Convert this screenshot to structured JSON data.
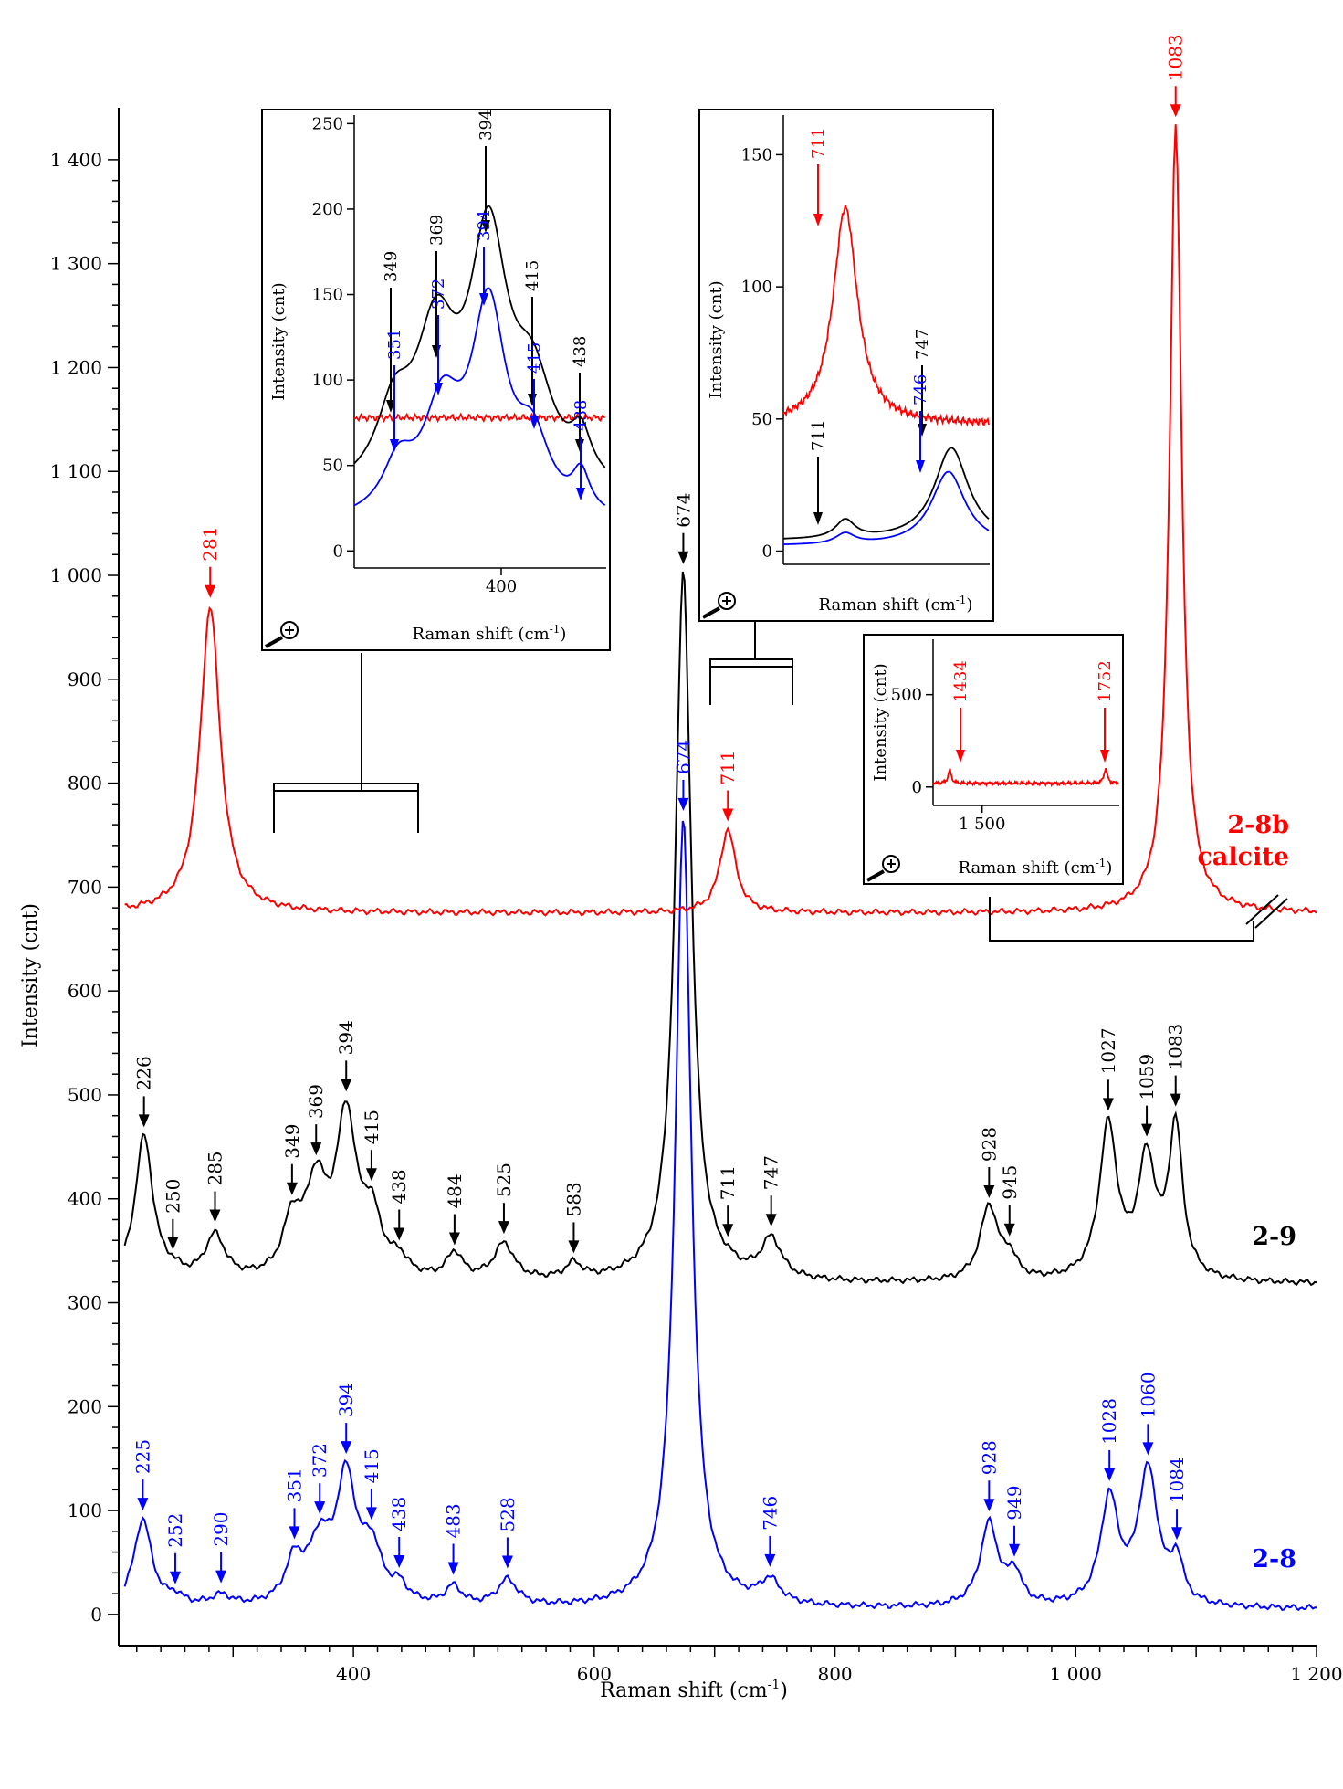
{
  "chart_data": {
    "type": "line",
    "xlabel": "Raman shift (cm",
    "xlabel_sup": "-1",
    "xlabel_end": ")",
    "ylabel": "Intensity (cnt)",
    "xlim": [
      205,
      1200
    ],
    "ylim": [
      -30,
      1450
    ],
    "x_ticks": [
      400,
      600,
      800,
      1000,
      1200
    ],
    "x_tick_labels": [
      "400",
      "600",
      "800",
      "1 000",
      "1 200"
    ],
    "y_ticks": [
      0,
      100,
      200,
      300,
      400,
      500,
      600,
      700,
      800,
      900,
      1000,
      1100,
      1200,
      1300,
      1400
    ],
    "y_tick_labels": [
      "0",
      "100",
      "200",
      "300",
      "400",
      "500",
      "600",
      "700",
      "800",
      "900",
      "1 000",
      "1 100",
      "1 200",
      "1 300",
      "1 400"
    ],
    "series": [
      {
        "name": "2-8",
        "color": "#0000ff",
        "baseline": 5,
        "peaks": [
          [
            225,
            85,
            9
          ],
          [
            252,
            8,
            8
          ],
          [
            290,
            10,
            10
          ],
          [
            351,
            40,
            9
          ],
          [
            372,
            55,
            11
          ],
          [
            394,
            118,
            10
          ],
          [
            415,
            50,
            10
          ],
          [
            438,
            15,
            8
          ],
          [
            483,
            18,
            8
          ],
          [
            528,
            25,
            10
          ],
          [
            674,
            760,
            8
          ],
          [
            746,
            22,
            10
          ],
          [
            928,
            80,
            9
          ],
          [
            949,
            30,
            7
          ],
          [
            1028,
            102,
            9
          ],
          [
            1060,
            130,
            10
          ],
          [
            1084,
            40,
            6
          ]
        ],
        "labels": [
          [
            "225",
            225
          ],
          [
            "252",
            252
          ],
          [
            "290",
            290
          ],
          [
            "351",
            351
          ],
          [
            "372",
            372
          ],
          [
            "394",
            394
          ],
          [
            "415",
            415
          ],
          [
            "438",
            438
          ],
          [
            "483",
            483
          ],
          [
            "528",
            528
          ],
          [
            "674",
            674
          ],
          [
            "746",
            746
          ],
          [
            "928",
            928
          ],
          [
            "949",
            949
          ],
          [
            "1028",
            1028
          ],
          [
            "1060",
            1060
          ],
          [
            "1084",
            1084
          ]
        ]
      },
      {
        "name": "2-9",
        "color": "#000000",
        "baseline": 318,
        "peaks": [
          [
            226,
            140,
            9
          ],
          [
            250,
            5,
            8
          ],
          [
            285,
            42,
            10
          ],
          [
            349,
            50,
            9
          ],
          [
            369,
            85,
            11
          ],
          [
            394,
            150,
            10
          ],
          [
            415,
            55,
            10
          ],
          [
            438,
            15,
            8
          ],
          [
            484,
            25,
            8
          ],
          [
            525,
            35,
            10
          ],
          [
            583,
            15,
            8
          ],
          [
            674,
            685,
            8
          ],
          [
            711,
            3,
            8
          ],
          [
            747,
            38,
            10
          ],
          [
            928,
            72,
            9
          ],
          [
            945,
            20,
            7
          ],
          [
            1027,
            148,
            9
          ],
          [
            1059,
            112,
            9
          ],
          [
            1083,
            145,
            7
          ]
        ],
        "labels": [
          [
            "226",
            226
          ],
          [
            "250",
            250
          ],
          [
            "285",
            285
          ],
          [
            "349",
            349
          ],
          [
            "369",
            369
          ],
          [
            "394",
            394
          ],
          [
            "415",
            415
          ],
          [
            "438",
            438
          ],
          [
            "484",
            484
          ],
          [
            "525",
            525
          ],
          [
            "583",
            583
          ],
          [
            "674",
            674
          ],
          [
            "711",
            711
          ],
          [
            "747",
            747
          ],
          [
            "928",
            928
          ],
          [
            "945",
            945
          ],
          [
            "1027",
            1027
          ],
          [
            "1059",
            1059
          ],
          [
            "1083",
            1083
          ]
        ]
      },
      {
        "name": "2-8b calcite",
        "color": "#ff0000",
        "baseline": 675,
        "peaks": [
          [
            281,
            295,
            10
          ],
          [
            711,
            80,
            8
          ],
          [
            1083,
            760,
            6
          ]
        ],
        "labels": [
          [
            "281",
            281
          ],
          [
            "711",
            711
          ],
          [
            "1083",
            1083
          ]
        ]
      }
    ],
    "series_tags": [
      "2-8",
      "2-9",
      "2-8b",
      "calcite"
    ],
    "insets": [
      {
        "xlabel": "Raman shift (cm",
        "xlabel_sup": "-1",
        "xlabel_end": ")",
        "ylabel": "Intensity (cnt)",
        "xlim": [
          330,
          450
        ],
        "ylim": [
          -10,
          255
        ],
        "x_ticks": [
          400
        ],
        "x_tick_labels": [
          "400"
        ],
        "y_ticks": [
          0,
          50,
          100,
          150,
          200,
          250
        ],
        "y_tick_labels": [
          "0",
          "50",
          "100",
          "150",
          "200",
          "250"
        ],
        "labels": [
          {
            "text": "349",
            "x": 349,
            "color": "#000000"
          },
          {
            "text": "369",
            "x": 369,
            "color": "#000000"
          },
          {
            "text": "394",
            "x": 394,
            "color": "#000000"
          },
          {
            "text": "415",
            "x": 415,
            "color": "#000000"
          },
          {
            "text": "438",
            "x": 438,
            "color": "#000000"
          },
          {
            "text": "351",
            "x": 351,
            "color": "#0000ff"
          },
          {
            "text": "372",
            "x": 372,
            "color": "#0000ff"
          },
          {
            "text": "394",
            "x": 394,
            "color": "#0000ff"
          },
          {
            "text": "415",
            "x": 415,
            "color": "#0000ff"
          },
          {
            "text": "438",
            "x": 438,
            "color": "#0000ff"
          }
        ]
      },
      {
        "xlabel": "Raman shift (cm",
        "xlabel_sup": "-1",
        "xlabel_end": ")",
        "ylabel": "Intensity (cnt)",
        "xlim": [
          690,
          760
        ],
        "ylim": [
          -5,
          165
        ],
        "x_ticks": [],
        "x_tick_labels": [],
        "y_ticks": [
          0,
          50,
          100,
          150
        ],
        "y_tick_labels": [
          "0",
          "50",
          "100",
          "150"
        ],
        "labels": [
          {
            "text": "711",
            "x": 711,
            "color": "#ff0000"
          },
          {
            "text": "711",
            "x": 711,
            "color": "#000000"
          },
          {
            "text": "747",
            "x": 747,
            "color": "#000000"
          },
          {
            "text": "746",
            "x": 746,
            "color": "#0000ff"
          }
        ]
      },
      {
        "xlabel": "Raman shift (cm",
        "xlabel_sup": "-1",
        "xlabel_end": ")",
        "ylabel": "Intensity (cnt)",
        "xlim": [
          1400,
          1780
        ],
        "ylim": [
          -100,
          800
        ],
        "x_ticks": [
          1500
        ],
        "x_tick_labels": [
          "1 500"
        ],
        "y_ticks": [
          0,
          500
        ],
        "y_tick_labels": [
          "0",
          "500"
        ],
        "labels": [
          {
            "text": "1434",
            "x": 1434,
            "color": "#ff0000"
          },
          {
            "text": "1752",
            "x": 1752,
            "color": "#ff0000"
          }
        ]
      }
    ],
    "grid": false
  }
}
